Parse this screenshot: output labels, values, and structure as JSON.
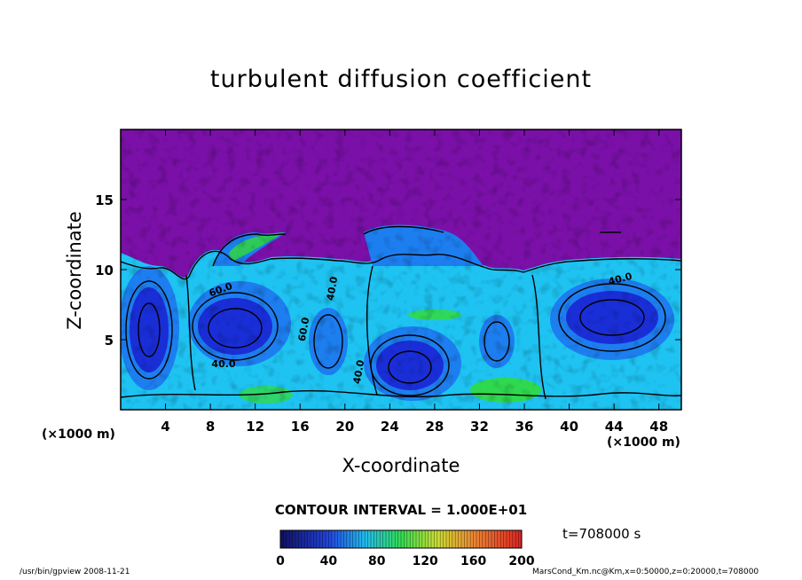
{
  "chart_data": {
    "type": "heatmap",
    "title": "turbulent diffusion coefficient",
    "xlabel": "X-coordinate",
    "ylabel": "Z-coordinate",
    "x_unit_label": "(×1000 m)",
    "xlim": [
      0,
      50
    ],
    "ylim": [
      0,
      20
    ],
    "x_ticks": [
      4,
      8,
      12,
      16,
      20,
      24,
      28,
      32,
      36,
      40,
      44,
      48
    ],
    "y_ticks": [
      5,
      10,
      15
    ],
    "contour_interval_label": "CONTOUR INTERVAL = 1.000E+01",
    "contour_labels": [
      "40.0",
      "60.0",
      "40.0",
      "40.0",
      "60.0",
      "40.0"
    ],
    "colorbar": {
      "range": [
        0,
        200
      ],
      "ticks": [
        0,
        40,
        80,
        120,
        160,
        200
      ]
    },
    "time_label": "t=708000 s",
    "colors": {
      "top": "#7a10a8",
      "dark_blue": "#1a2ed8",
      "mid_blue": "#1d7ef0",
      "cyan": "#1ec3f2",
      "green": "#33dd33"
    }
  },
  "footer": {
    "left": "/usr/bin/gpview   2008-11-21",
    "right": "MarsCond_Km.nc@Km,x=0:50000,z=0:20000,t=708000"
  }
}
